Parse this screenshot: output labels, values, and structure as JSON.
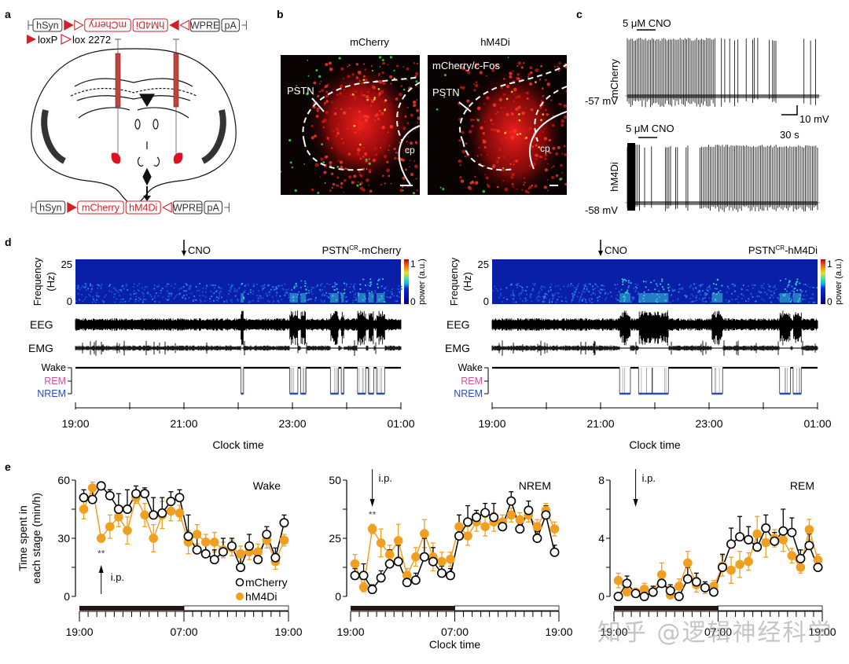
{
  "panel_labels": {
    "a": "a",
    "b": "b",
    "c": "c",
    "d": "d",
    "e": "e"
  },
  "panel_a": {
    "top_construct": [
      {
        "label": "hSyn",
        "kind": "box",
        "color": "#333333"
      },
      {
        "label": "loxP",
        "kind": "loxp"
      },
      {
        "label": "lox2272",
        "kind": "lox2272"
      },
      {
        "label": "mCherry",
        "kind": "box-flipped",
        "color": "#d0202a"
      },
      {
        "label": "hM4Di",
        "kind": "box-flipped",
        "color": "#d0202a"
      },
      {
        "label": "loxP",
        "kind": "loxp-rev"
      },
      {
        "label": "lox2272",
        "kind": "lox2272-rev"
      },
      {
        "label": "WPRE",
        "kind": "box",
        "color": "#333333"
      },
      {
        "label": "pA",
        "kind": "box",
        "color": "#333333"
      }
    ],
    "legend_loxp": "loxP",
    "legend_lox2272": "lox 2272",
    "bottom_construct": [
      {
        "label": "hSyn",
        "kind": "box",
        "color": "#333333"
      },
      {
        "label": "loxP",
        "kind": "loxp"
      },
      {
        "label": "mCherry",
        "kind": "box",
        "color": "#d0202a"
      },
      {
        "label": "hM4Di",
        "kind": "box",
        "color": "#d0202a"
      },
      {
        "label": "lox2272",
        "kind": "lox2272-rev"
      },
      {
        "label": "WPRE",
        "kind": "box",
        "color": "#333333"
      },
      {
        "label": "pA",
        "kind": "box",
        "color": "#333333"
      }
    ]
  },
  "panel_b": {
    "images": [
      {
        "title": "mCherry",
        "overlay": "",
        "region": "PSTN",
        "structure": "cp"
      },
      {
        "title": "hM4Di",
        "overlay": "mCherry/c-Fos",
        "region": "PSTN",
        "structure": "cp"
      }
    ]
  },
  "panel_c": {
    "traces": [
      {
        "label": "mCherry",
        "drug": "5 μM CNO",
        "baseline": "-57 mV"
      },
      {
        "label": "hM4Di",
        "drug": "5 μM CNO",
        "baseline": "-58 mV"
      }
    ],
    "scale_v": "10 mV",
    "scale_t": "30 s"
  },
  "panel_d": {
    "recordings": [
      {
        "title": "PSTN",
        "title_sup": "CR",
        "title_suffix": "-mCherry",
        "cno": "CNO",
        "nrem_bouts": [
          [
            3.05,
            3.1
          ],
          [
            3.95,
            4.1
          ],
          [
            4.15,
            4.25
          ],
          [
            4.7,
            4.85
          ],
          [
            4.9,
            4.95
          ],
          [
            5.2,
            5.35
          ],
          [
            5.4,
            5.5
          ],
          [
            5.55,
            5.7
          ]
        ]
      },
      {
        "title": "PSTN",
        "title_sup": "CR",
        "title_suffix": "-hM4Di",
        "cno": "CNO",
        "nrem_bouts": [
          [
            2.35,
            2.55
          ],
          [
            2.7,
            2.95
          ],
          [
            2.95,
            3.25
          ],
          [
            4.05,
            4.25
          ],
          [
            5.3,
            5.5
          ],
          [
            5.55,
            5.7
          ]
        ]
      }
    ],
    "freq_label": "Frequency\n(Hz)",
    "freq_ticks": [
      "25",
      "0"
    ],
    "colorbar_ticks": [
      "1",
      "0"
    ],
    "colorbar_label": "power (a.u.)",
    "eeg_label": "EEG",
    "emg_label": "EMG",
    "stages": [
      "Wake",
      "REM",
      "NREM"
    ],
    "stage_colors": {
      "Wake": "#000000",
      "REM": "#d0529a",
      "NREM": "#2a4db0"
    },
    "x_ticks": [
      "19:00",
      "21:00",
      "23:00",
      "01:00"
    ],
    "xlabel": "Clock time"
  },
  "chart_data": [
    {
      "type": "line",
      "title": "Wake",
      "ylabel": "Time spent in each stage (min/h)",
      "xlabel": "",
      "ylim": [
        0,
        60
      ],
      "yticks": [
        0,
        30,
        60
      ],
      "x_ticks": [
        "19:00",
        "07:00",
        "19:00"
      ],
      "x_hours": 24,
      "annotation": "i.p.",
      "annotation_dir": "up",
      "significance": "**",
      "significance_x": 2,
      "light_dark": {
        "dark_hours": [
          0,
          12
        ],
        "light_hours": [
          12,
          24
        ]
      },
      "legend": [
        "mCherry",
        "hM4Di"
      ],
      "legend_position": "bottom-right",
      "series": [
        {
          "name": "mCherry",
          "style": "open-circle",
          "color": "#000000",
          "values": [
            51,
            50,
            57,
            52,
            45,
            45,
            53,
            53,
            42,
            43,
            49,
            51,
            31,
            24,
            22,
            19,
            23,
            26,
            15,
            26,
            19,
            32,
            20,
            38
          ],
          "errors": [
            4,
            6,
            2,
            3,
            8,
            10,
            4,
            3,
            9,
            8,
            5,
            4,
            11,
            8,
            5,
            5,
            7,
            4,
            5,
            6,
            5,
            4,
            5,
            4
          ]
        },
        {
          "name": "hM4Di",
          "style": "filled-circle",
          "color": "#f0a020",
          "values": [
            45,
            56,
            30,
            36,
            41,
            34,
            51,
            42,
            30,
            42,
            44,
            43,
            28,
            32,
            28,
            28,
            24,
            25,
            22,
            23,
            23,
            29,
            18,
            29
          ],
          "errors": [
            5,
            3,
            2,
            6,
            5,
            7,
            3,
            6,
            7,
            7,
            5,
            4,
            6,
            5,
            4,
            5,
            4,
            4,
            4,
            4,
            4,
            4,
            4,
            3
          ]
        }
      ]
    },
    {
      "type": "line",
      "title": "NREM",
      "ylabel": "",
      "xlabel": "Clock time",
      "ylim": [
        0,
        50
      ],
      "yticks": [
        0,
        25,
        50
      ],
      "x_ticks": [
        "19:00",
        "07:00",
        "19:00"
      ],
      "x_hours": 24,
      "annotation": "i.p.",
      "annotation_dir": "down",
      "significance": "**",
      "significance_x": 2,
      "light_dark": {
        "dark_hours": [
          0,
          12
        ],
        "light_hours": [
          12,
          24
        ]
      },
      "legend": [],
      "series": [
        {
          "name": "mCherry",
          "style": "open-circle",
          "color": "#000000",
          "values": [
            9,
            9,
            3,
            8,
            14,
            15,
            6,
            7,
            17,
            15,
            10,
            9,
            26,
            32,
            34,
            36,
            34,
            30,
            41,
            29,
            37,
            25,
            35,
            19
          ],
          "errors": [
            3,
            5,
            2,
            3,
            6,
            7,
            3,
            3,
            8,
            6,
            3,
            3,
            9,
            7,
            3,
            4,
            6,
            2,
            4,
            5,
            4,
            3,
            4,
            3
          ]
        },
        {
          "name": "hM4Di",
          "style": "filled-circle",
          "color": "#f0a020",
          "values": [
            14,
            4,
            29,
            23,
            18,
            24,
            9,
            17,
            27,
            17,
            15,
            16,
            30,
            26,
            32,
            30,
            32,
            32,
            35,
            33,
            35,
            30,
            37,
            29
          ],
          "errors": [
            4,
            2,
            2,
            6,
            4,
            7,
            3,
            4,
            6,
            6,
            4,
            3,
            5,
            4,
            4,
            4,
            4,
            3,
            3,
            3,
            3,
            3,
            3,
            3
          ]
        }
      ]
    },
    {
      "type": "line",
      "title": "REM",
      "ylabel": "",
      "xlabel": "",
      "ylim": [
        0,
        8
      ],
      "yticks": [
        0,
        4,
        8
      ],
      "x_ticks": [
        "19:00",
        "07:00",
        "19:00"
      ],
      "x_hours": 24,
      "annotation": "i.p.",
      "annotation_dir": "down",
      "significance": "",
      "significance_x": 2,
      "light_dark": {
        "dark_hours": [
          0,
          12
        ],
        "light_hours": [
          12,
          24
        ]
      },
      "legend": [],
      "series": [
        {
          "name": "mCherry",
          "style": "open-circle",
          "color": "#000000",
          "values": [
            0,
            0.9,
            0.2,
            0,
            0.3,
            0.9,
            0.4,
            0,
            1.2,
            1.0,
            0.6,
            0.3,
            2.0,
            3.6,
            4.1,
            3.9,
            3.4,
            4.7,
            3.8,
            4.5,
            4.4,
            2.6,
            3.5,
            2.0
          ],
          "errors": [
            0.1,
            0.5,
            0.2,
            0.1,
            0.4,
            0.6,
            0.4,
            0.1,
            0.8,
            0.6,
            0.4,
            0.3,
            0.9,
            1.1,
            1.4,
            0.9,
            0.9,
            0.9,
            0.6,
            1.5,
            1.0,
            0.6,
            0.8,
            0.5
          ]
        },
        {
          "name": "hM4Di",
          "style": "filled-circle",
          "color": "#f0a020",
          "values": [
            1.1,
            0.3,
            0.3,
            0.5,
            0.3,
            1.5,
            0.1,
            0.7,
            2.3,
            0.8,
            0.6,
            0.7,
            2.1,
            1.8,
            2.2,
            2.4,
            4.3,
            3.7,
            4.0,
            3.9,
            2.8,
            2.0,
            4.6,
            2.5
          ],
          "errors": [
            0.5,
            0.2,
            0.2,
            0.4,
            0.3,
            0.8,
            0.1,
            0.5,
            0.8,
            0.5,
            0.4,
            0.4,
            0.7,
            0.9,
            0.9,
            0.6,
            1.2,
            1.0,
            0.6,
            0.8,
            0.5,
            0.4,
            0.7,
            0.4
          ]
        }
      ]
    }
  ],
  "watermark": "知乎 @逻辑神经科学"
}
